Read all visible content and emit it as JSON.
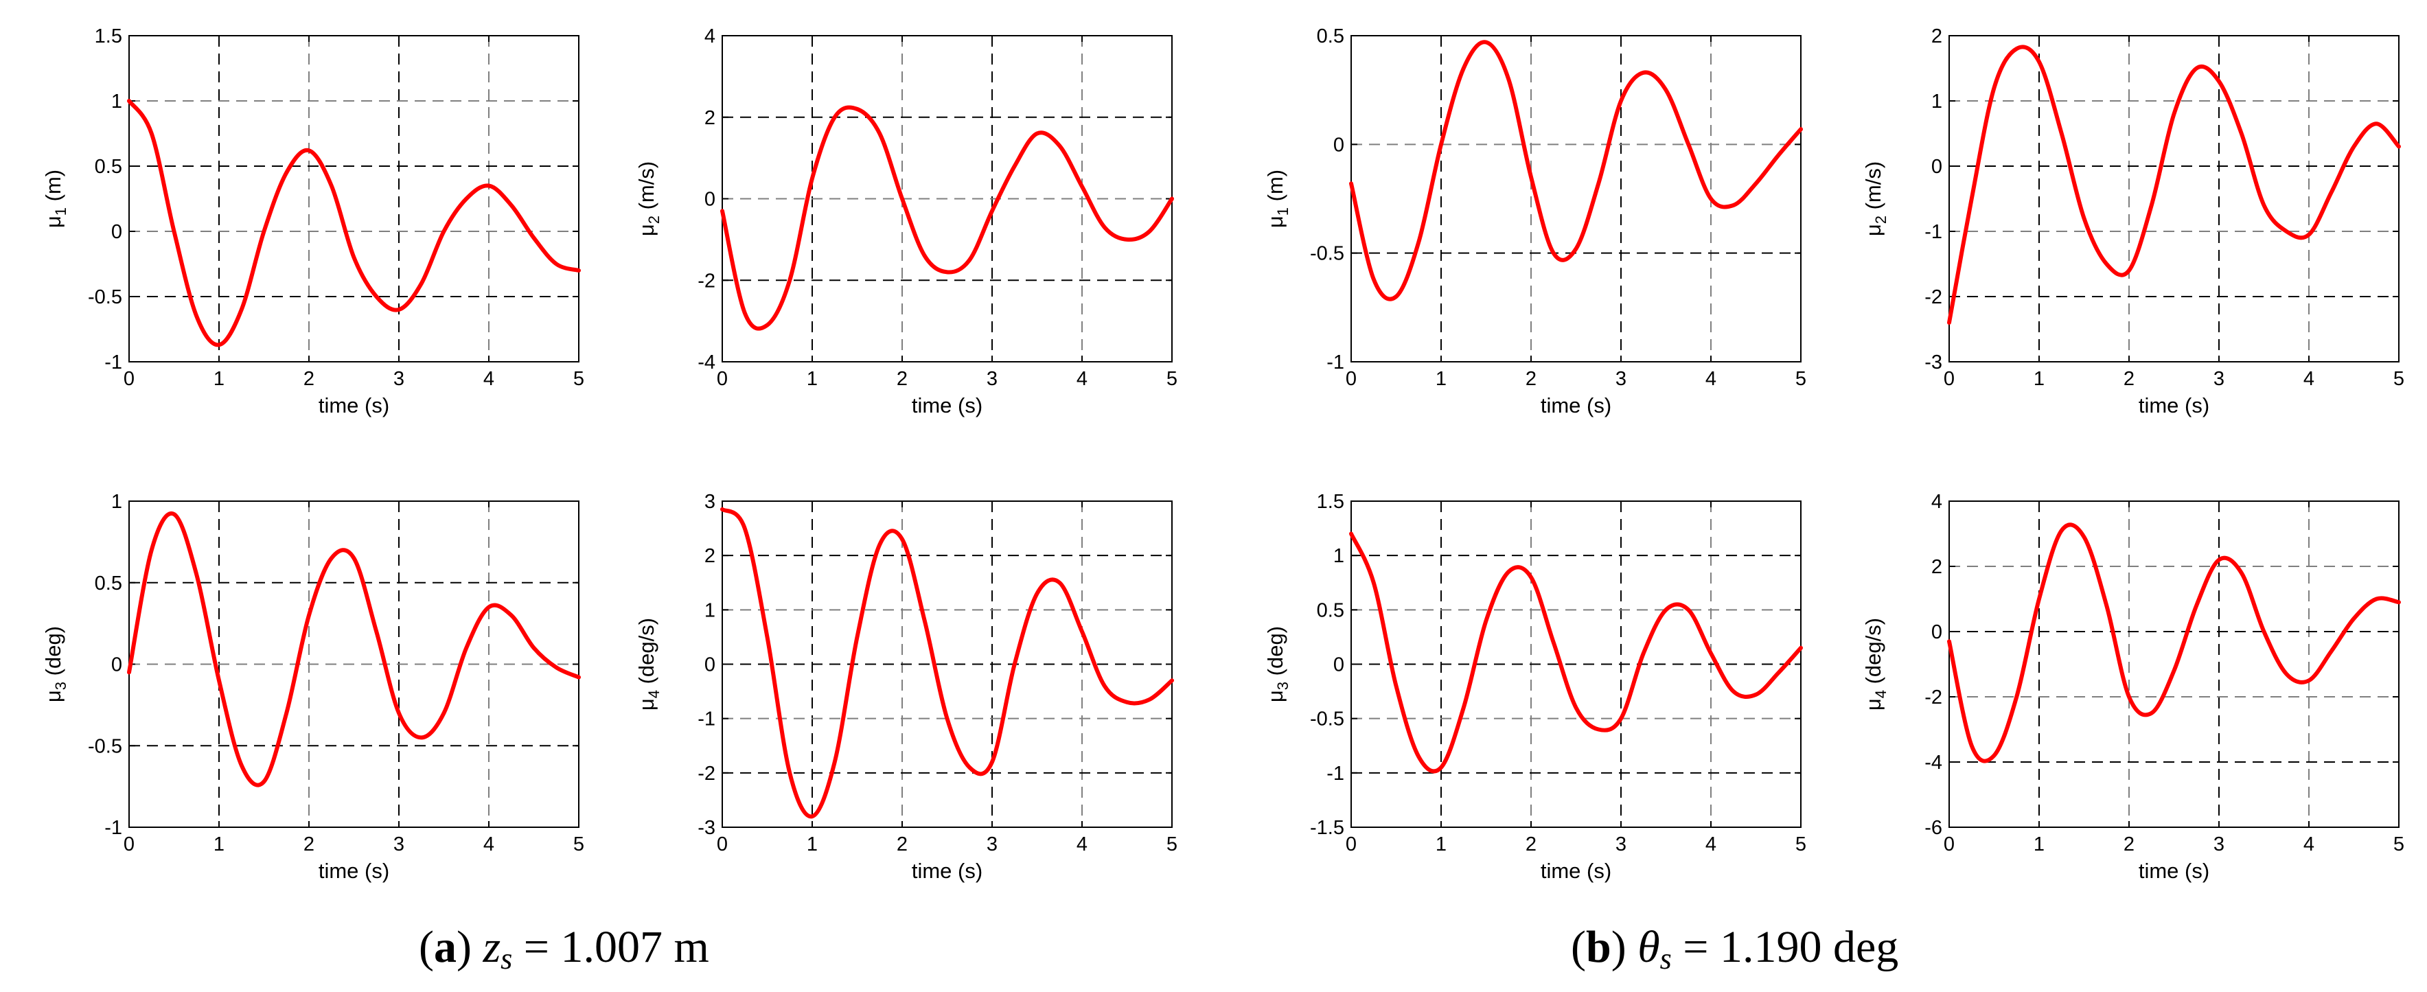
{
  "panel_captions": [
    {
      "letter": "a",
      "symbol": "z",
      "sub": "s",
      "rest": " = 1.007 m"
    },
    {
      "letter": "b",
      "symbol": "θ",
      "sub": "s",
      "rest": " = 1.190 deg"
    }
  ],
  "style": {
    "line_color": "#ff0000",
    "grid_major_color": "#000000",
    "grid_minor_color": "#7f7f7f"
  },
  "chart_data": [
    {
      "type": "line",
      "panel": "a",
      "xlabel": "time (s)",
      "ylabel_base": "μ",
      "ylabel_sub": "1",
      "ylabel_unit": "(m)",
      "xlim": [
        0,
        5
      ],
      "ylim": [
        -1,
        1.5
      ],
      "xticks": [
        0,
        1,
        2,
        3,
        4,
        5
      ],
      "yticks": [
        -1,
        -0.5,
        0,
        0.5,
        1,
        1.5
      ],
      "grid": true,
      "x": [
        0,
        0.25,
        0.5,
        0.75,
        1,
        1.25,
        1.5,
        1.75,
        2,
        2.25,
        2.5,
        2.75,
        3,
        3.25,
        3.5,
        3.75,
        4,
        4.25,
        4.5,
        4.75,
        5
      ],
      "y": [
        1,
        0.75,
        0,
        -0.65,
        -0.87,
        -0.6,
        0,
        0.45,
        0.62,
        0.35,
        -0.2,
        -0.5,
        -0.6,
        -0.4,
        0,
        0.25,
        0.35,
        0.2,
        -0.05,
        -0.25,
        -0.3
      ]
    },
    {
      "type": "line",
      "panel": "a",
      "xlabel": "time (s)",
      "ylabel_base": "μ",
      "ylabel_sub": "2",
      "ylabel_unit": "(m/s)",
      "xlim": [
        0,
        5
      ],
      "ylim": [
        -4,
        4
      ],
      "xticks": [
        0,
        1,
        2,
        3,
        4,
        5
      ],
      "yticks": [
        -4,
        -2,
        0,
        2,
        4
      ],
      "grid": true,
      "x": [
        0,
        0.25,
        0.5,
        0.75,
        1,
        1.25,
        1.5,
        1.75,
        2,
        2.25,
        2.5,
        2.75,
        3,
        3.25,
        3.5,
        3.75,
        4,
        4.25,
        4.5,
        4.75,
        5
      ],
      "y": [
        -0.3,
        -2.8,
        -3.1,
        -2,
        0.5,
        2,
        2.2,
        1.6,
        0,
        -1.4,
        -1.8,
        -1.5,
        -0.3,
        0.8,
        1.6,
        1.3,
        0.3,
        -0.7,
        -1,
        -0.8,
        0
      ]
    },
    {
      "type": "line",
      "panel": "b",
      "xlabel": "time (s)",
      "ylabel_base": "μ",
      "ylabel_sub": "1",
      "ylabel_unit": "(m)",
      "xlim": [
        0,
        5
      ],
      "ylim": [
        -1,
        0.5
      ],
      "xticks": [
        0,
        1,
        2,
        3,
        4,
        5
      ],
      "yticks": [
        -1,
        -0.5,
        0,
        0.5
      ],
      "grid": true,
      "x": [
        0,
        0.25,
        0.5,
        0.75,
        1,
        1.25,
        1.5,
        1.75,
        2,
        2.25,
        2.5,
        2.75,
        3,
        3.25,
        3.5,
        3.75,
        4,
        4.25,
        4.5,
        4.75,
        5
      ],
      "y": [
        -0.18,
        -0.62,
        -0.7,
        -0.45,
        0,
        0.35,
        0.47,
        0.3,
        -0.15,
        -0.5,
        -0.48,
        -0.18,
        0.2,
        0.33,
        0.25,
        0,
        -0.25,
        -0.28,
        -0.18,
        -0.05,
        0.07
      ]
    },
    {
      "type": "line",
      "panel": "b",
      "xlabel": "time (s)",
      "ylabel_base": "μ",
      "ylabel_sub": "2",
      "ylabel_unit": "(m/s)",
      "xlim": [
        0,
        5
      ],
      "ylim": [
        -3,
        2
      ],
      "xticks": [
        0,
        1,
        2,
        3,
        4,
        5
      ],
      "yticks": [
        -3,
        -2,
        -1,
        0,
        1,
        2
      ],
      "grid": true,
      "x": [
        0,
        0.25,
        0.5,
        0.75,
        1,
        1.25,
        1.5,
        1.75,
        2,
        2.25,
        2.5,
        2.75,
        3,
        3.25,
        3.5,
        3.75,
        4,
        4.25,
        4.5,
        4.75,
        5
      ],
      "y": [
        -2.4,
        -0.5,
        1.2,
        1.8,
        1.6,
        0.5,
        -0.8,
        -1.5,
        -1.6,
        -0.6,
        0.8,
        1.5,
        1.3,
        0.5,
        -0.6,
        -1,
        -1.05,
        -0.4,
        0.3,
        0.65,
        0.3
      ]
    },
    {
      "type": "line",
      "panel": "a",
      "xlabel": "time (s)",
      "ylabel_base": "μ",
      "ylabel_sub": "3",
      "ylabel_unit": "(deg)",
      "xlim": [
        0,
        5
      ],
      "ylim": [
        -1,
        1
      ],
      "xticks": [
        0,
        1,
        2,
        3,
        4,
        5
      ],
      "yticks": [
        -1,
        -0.5,
        0,
        0.5,
        1
      ],
      "grid": true,
      "x": [
        0,
        0.25,
        0.5,
        0.75,
        1,
        1.25,
        1.5,
        1.75,
        2,
        2.25,
        2.5,
        2.75,
        3,
        3.25,
        3.5,
        3.75,
        4,
        4.25,
        4.5,
        4.75,
        5
      ],
      "y": [
        -0.05,
        0.7,
        0.92,
        0.55,
        -0.1,
        -0.62,
        -0.72,
        -0.3,
        0.3,
        0.65,
        0.65,
        0.2,
        -0.3,
        -0.45,
        -0.3,
        0.1,
        0.35,
        0.3,
        0.1,
        -0.02,
        -0.08
      ]
    },
    {
      "type": "line",
      "panel": "a",
      "xlabel": "time (s)",
      "ylabel_base": "μ",
      "ylabel_sub": "4",
      "ylabel_unit": "(deg/s)",
      "xlim": [
        0,
        5
      ],
      "ylim": [
        -3,
        3
      ],
      "xticks": [
        0,
        1,
        2,
        3,
        4,
        5
      ],
      "yticks": [
        -3,
        -2,
        -1,
        0,
        1,
        2,
        3
      ],
      "grid": true,
      "x": [
        0,
        0.25,
        0.5,
        0.75,
        1,
        1.25,
        1.5,
        1.75,
        2,
        2.25,
        2.5,
        2.75,
        3,
        3.25,
        3.5,
        3.75,
        4,
        4.25,
        4.5,
        4.75,
        5
      ],
      "y": [
        2.85,
        2.5,
        0.5,
        -2,
        -2.8,
        -1.8,
        0.5,
        2.2,
        2.3,
        0.8,
        -1,
        -1.9,
        -1.8,
        0,
        1.3,
        1.5,
        0.6,
        -0.4,
        -0.7,
        -0.65,
        -0.3
      ]
    },
    {
      "type": "line",
      "panel": "b",
      "xlabel": "time (s)",
      "ylabel_base": "μ",
      "ylabel_sub": "3",
      "ylabel_unit": "(deg)",
      "xlim": [
        0,
        5
      ],
      "ylim": [
        -1.5,
        1.5
      ],
      "xticks": [
        0,
        1,
        2,
        3,
        4,
        5
      ],
      "yticks": [
        -1.5,
        -1,
        -0.5,
        0,
        0.5,
        1,
        1.5
      ],
      "grid": true,
      "x": [
        0,
        0.25,
        0.5,
        0.75,
        1,
        1.25,
        1.5,
        1.75,
        2,
        2.25,
        2.5,
        2.75,
        3,
        3.25,
        3.5,
        3.75,
        4,
        4.25,
        4.5,
        4.75,
        5
      ],
      "y": [
        1.2,
        0.75,
        -0.2,
        -0.85,
        -0.95,
        -0.4,
        0.4,
        0.85,
        0.8,
        0.2,
        -0.4,
        -0.6,
        -0.5,
        0.1,
        0.5,
        0.5,
        0.1,
        -0.25,
        -0.28,
        -0.08,
        0.15
      ]
    },
    {
      "type": "line",
      "panel": "b",
      "xlabel": "time (s)",
      "ylabel_base": "μ",
      "ylabel_sub": "4",
      "ylabel_unit": "(deg/s)",
      "xlim": [
        0,
        5
      ],
      "ylim": [
        -6,
        4
      ],
      "xticks": [
        0,
        1,
        2,
        3,
        4,
        5
      ],
      "yticks": [
        -6,
        -4,
        -2,
        0,
        2,
        4
      ],
      "grid": true,
      "x": [
        0,
        0.25,
        0.5,
        0.75,
        1,
        1.25,
        1.5,
        1.75,
        2,
        2.25,
        2.5,
        2.75,
        3,
        3.25,
        3.5,
        3.75,
        4,
        4.25,
        4.5,
        4.75,
        5
      ],
      "y": [
        -0.3,
        -3.5,
        -3.8,
        -2,
        1,
        3.1,
        2.9,
        0.8,
        -2,
        -2.5,
        -1.2,
        0.8,
        2.2,
        1.8,
        0,
        -1.3,
        -1.5,
        -0.6,
        0.4,
        1,
        0.9
      ]
    }
  ]
}
